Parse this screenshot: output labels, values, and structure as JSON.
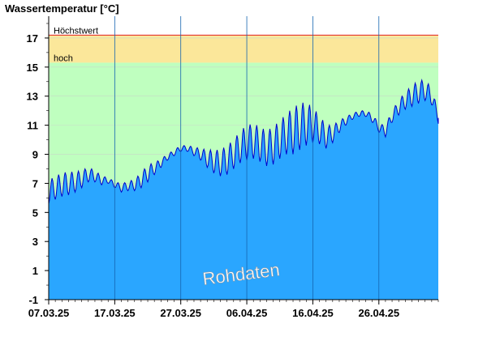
{
  "chart_data": {
    "type": "area",
    "title": "Wassertemperatur [°C]",
    "xlabel": "",
    "ylabel": "",
    "ylim": [
      -1,
      18.5
    ],
    "yticks": [
      -1,
      1,
      3,
      5,
      7,
      9,
      11,
      13,
      15,
      17
    ],
    "x_start_date": "07.03.25",
    "x_end_date": "05.05.25",
    "xtick_labels": [
      "07.03.25",
      "17.03.25",
      "27.03.25",
      "06.04.25",
      "16.04.25",
      "26.04.25"
    ],
    "bands": [
      {
        "name": "Höchstwert",
        "from": 15.3,
        "to": 17.2,
        "color": "#fbe79a"
      },
      {
        "name": "hoch",
        "from": -1,
        "to": 15.3,
        "color": "#bfffbf"
      }
    ],
    "threshold_line": {
      "name": "Höchstwert",
      "value": 17.2,
      "color": "#e02020"
    },
    "band_labels": {
      "top": "Höchstwert",
      "lower": "hoch"
    },
    "watermark": "Rohdaten",
    "series": [
      {
        "x_dates": [
          "07.03.25",
          "08.03.25",
          "09.03.25",
          "10.03.25",
          "11.03.25",
          "12.03.25",
          "13.03.25",
          "14.03.25",
          "15.03.25",
          "16.03.25",
          "17.03.25",
          "18.03.25",
          "19.03.25",
          "20.03.25",
          "21.03.25",
          "22.03.25",
          "23.03.25",
          "24.03.25",
          "25.03.25",
          "26.03.25",
          "27.03.25",
          "28.03.25",
          "29.03.25",
          "30.03.25",
          "31.03.25",
          "01.04.25",
          "02.04.25",
          "03.04.25",
          "04.04.25",
          "05.04.25",
          "06.04.25",
          "07.04.25",
          "08.04.25",
          "09.04.25",
          "10.04.25",
          "11.04.25",
          "12.04.25",
          "13.04.25",
          "14.04.25",
          "15.04.25",
          "16.04.25",
          "17.04.25",
          "18.04.25",
          "19.04.25",
          "20.04.25",
          "21.04.25",
          "22.04.25",
          "23.04.25",
          "24.04.25",
          "25.04.25",
          "26.04.25",
          "27.04.25",
          "28.04.25",
          "29.04.25",
          "30.04.25",
          "01.05.25",
          "02.05.25",
          "03.05.25",
          "04.05.25",
          "05.05.25"
        ],
        "mean": [
          6.4,
          6.7,
          6.9,
          7.0,
          7.1,
          7.3,
          7.6,
          7.5,
          7.2,
          7.2,
          6.9,
          6.7,
          6.8,
          6.9,
          7.2,
          7.7,
          8.0,
          8.4,
          8.8,
          9.1,
          9.4,
          9.4,
          9.2,
          9.0,
          8.7,
          8.5,
          8.4,
          8.6,
          9.0,
          9.5,
          9.8,
          9.9,
          9.7,
          9.4,
          9.6,
          10.0,
          10.4,
          10.6,
          10.9,
          11.1,
          11.0,
          10.7,
          10.2,
          10.4,
          10.9,
          11.3,
          11.6,
          11.8,
          11.8,
          11.5,
          10.8,
          10.6,
          11.6,
          12.2,
          12.7,
          13.0,
          13.3,
          13.4,
          13.0,
          11.5
        ],
        "amplitude": [
          0.8,
          0.8,
          0.8,
          0.8,
          0.7,
          0.6,
          0.5,
          0.4,
          0.3,
          0.2,
          0.2,
          0.3,
          0.3,
          0.4,
          0.5,
          0.6,
          0.4,
          0.3,
          0.2,
          0.2,
          0.2,
          0.2,
          0.3,
          0.4,
          0.6,
          0.8,
          0.9,
          1.0,
          1.0,
          1.1,
          1.2,
          1.2,
          1.2,
          1.2,
          1.3,
          1.3,
          1.4,
          1.6,
          1.6,
          1.5,
          1.2,
          1.0,
          0.8,
          0.6,
          0.4,
          0.3,
          0.2,
          0.2,
          0.2,
          0.3,
          0.3,
          0.4,
          0.4,
          0.5,
          0.6,
          0.7,
          0.8,
          0.7,
          0.6,
          0.4
        ]
      }
    ]
  }
}
